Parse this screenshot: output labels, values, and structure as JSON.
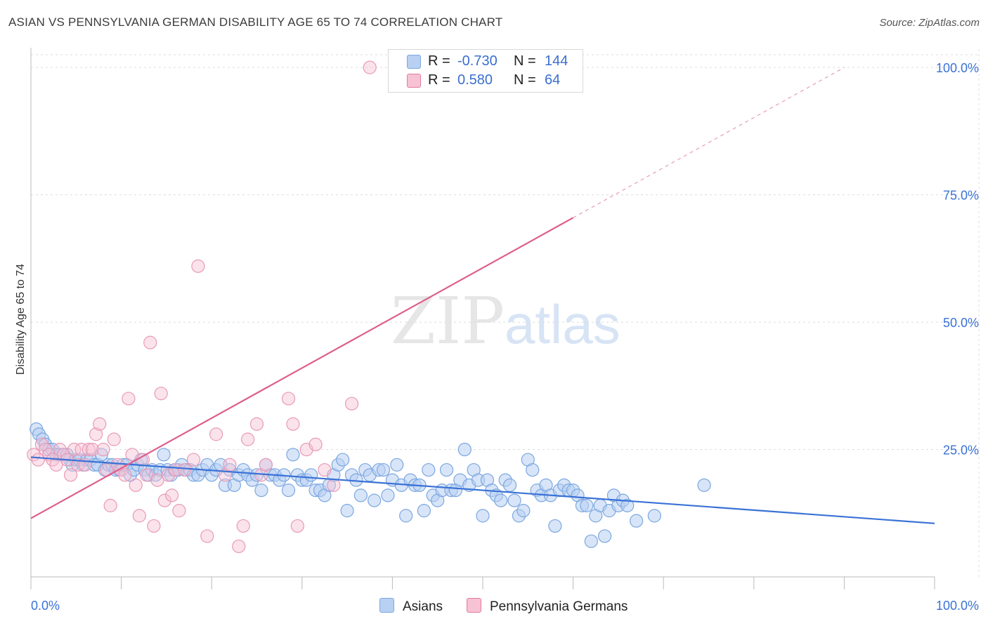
{
  "title": "ASIAN VS PENNSYLVANIA GERMAN DISABILITY AGE 65 TO 74 CORRELATION CHART",
  "source": "Source: ZipAtlas.com",
  "watermark": {
    "zip": "ZIP",
    "atlas": "atlas"
  },
  "legend": {
    "r_label": "R =",
    "n_label": "N =",
    "series": [
      {
        "name": "Asians",
        "r": "-0.730",
        "n": "144",
        "color": "#7ba7e0",
        "fill": "#b8d0f2"
      },
      {
        "name": "Pennsylvania Germans",
        "r": "0.580",
        "n": "64",
        "color": "#e27ba0",
        "fill": "#f7c2d4"
      }
    ]
  },
  "chart_data": {
    "type": "scatter",
    "title": "ASIAN VS PENNSYLVANIA GERMAN DISABILITY AGE 65 TO 74 CORRELATION CHART",
    "xlabel": "",
    "ylabel": "Disability Age 65 to 74",
    "xlim": [
      0,
      100
    ],
    "ylim": [
      0,
      102.5
    ],
    "x_tick_labels": [
      "0.0%",
      "100.0%"
    ],
    "y_tick_labels": [
      "25.0%",
      "50.0%",
      "75.0%",
      "100.0%"
    ],
    "y_ticks": [
      25,
      50,
      75,
      100
    ],
    "grid": true,
    "legend_position": "top-center",
    "series": [
      {
        "name": "Asians",
        "color": "#3a72d6",
        "trend": {
          "x": [
            0,
            100
          ],
          "y": [
            23.5,
            10.5
          ],
          "dashed_extension": false
        },
        "points": [
          [
            0.6,
            29
          ],
          [
            0.9,
            28
          ],
          [
            1.3,
            27
          ],
          [
            1.6,
            26
          ],
          [
            2.0,
            25
          ],
          [
            2.4,
            25
          ],
          [
            2.8,
            24
          ],
          [
            3.2,
            24
          ],
          [
            3.6,
            24
          ],
          [
            4.0,
            24
          ],
          [
            4.3,
            23
          ],
          [
            4.6,
            22
          ],
          [
            5.0,
            23
          ],
          [
            5.4,
            23
          ],
          [
            5.8,
            22
          ],
          [
            6.2,
            23
          ],
          [
            6.6,
            23
          ],
          [
            7.0,
            22
          ],
          [
            7.4,
            22
          ],
          [
            7.8,
            24
          ],
          [
            8.2,
            21
          ],
          [
            8.6,
            22
          ],
          [
            9.0,
            22
          ],
          [
            9.4,
            21
          ],
          [
            9.8,
            21
          ],
          [
            10.2,
            22
          ],
          [
            10.6,
            22
          ],
          [
            11.0,
            20
          ],
          [
            11.4,
            21
          ],
          [
            11.8,
            22
          ],
          [
            12.2,
            23
          ],
          [
            12.6,
            21
          ],
          [
            13.0,
            20
          ],
          [
            13.4,
            21
          ],
          [
            13.8,
            20
          ],
          [
            14.3,
            21
          ],
          [
            14.7,
            24
          ],
          [
            15.1,
            21
          ],
          [
            15.5,
            20
          ],
          [
            15.9,
            21
          ],
          [
            16.3,
            21
          ],
          [
            16.7,
            22
          ],
          [
            17.2,
            21
          ],
          [
            17.6,
            21
          ],
          [
            18.0,
            20
          ],
          [
            18.5,
            20
          ],
          [
            19.0,
            21
          ],
          [
            19.5,
            22
          ],
          [
            20.0,
            20
          ],
          [
            20.5,
            21
          ],
          [
            21.0,
            22
          ],
          [
            21.5,
            18
          ],
          [
            22.0,
            21
          ],
          [
            22.5,
            18
          ],
          [
            23.0,
            20
          ],
          [
            23.5,
            21
          ],
          [
            24.0,
            20
          ],
          [
            24.5,
            19
          ],
          [
            25.0,
            20
          ],
          [
            25.5,
            17
          ],
          [
            26.0,
            22
          ],
          [
            26.5,
            20
          ],
          [
            27.0,
            20
          ],
          [
            27.5,
            19
          ],
          [
            28.0,
            20
          ],
          [
            28.5,
            17
          ],
          [
            29.0,
            24
          ],
          [
            29.5,
            20
          ],
          [
            30.0,
            19
          ],
          [
            30.5,
            19
          ],
          [
            31.0,
            20
          ],
          [
            31.5,
            17
          ],
          [
            32.0,
            17
          ],
          [
            32.5,
            16
          ],
          [
            33.0,
            18
          ],
          [
            33.5,
            20
          ],
          [
            34.0,
            22
          ],
          [
            34.5,
            23
          ],
          [
            35.0,
            13
          ],
          [
            35.5,
            20
          ],
          [
            36.0,
            19
          ],
          [
            36.5,
            16
          ],
          [
            37.0,
            21
          ],
          [
            37.5,
            20
          ],
          [
            38.0,
            15
          ],
          [
            38.5,
            21
          ],
          [
            39.0,
            21
          ],
          [
            39.5,
            16
          ],
          [
            40.0,
            19
          ],
          [
            40.5,
            22
          ],
          [
            41.0,
            18
          ],
          [
            41.5,
            12
          ],
          [
            42.0,
            19
          ],
          [
            42.5,
            18
          ],
          [
            43.0,
            18
          ],
          [
            43.5,
            13
          ],
          [
            44.0,
            21
          ],
          [
            44.5,
            16
          ],
          [
            45.0,
            15
          ],
          [
            45.5,
            17
          ],
          [
            46.0,
            21
          ],
          [
            46.5,
            17
          ],
          [
            47.0,
            17
          ],
          [
            47.5,
            19
          ],
          [
            48.0,
            25
          ],
          [
            48.5,
            18
          ],
          [
            49.0,
            21
          ],
          [
            49.5,
            19
          ],
          [
            50.0,
            12
          ],
          [
            50.5,
            19
          ],
          [
            51.0,
            17
          ],
          [
            51.5,
            16
          ],
          [
            52.0,
            15
          ],
          [
            52.5,
            19
          ],
          [
            53.0,
            18
          ],
          [
            53.5,
            15
          ],
          [
            54.0,
            12
          ],
          [
            54.5,
            13
          ],
          [
            55.0,
            23
          ],
          [
            55.5,
            21
          ],
          [
            56.0,
            17
          ],
          [
            56.5,
            16
          ],
          [
            57.0,
            18
          ],
          [
            57.5,
            16
          ],
          [
            58.0,
            10
          ],
          [
            58.5,
            17
          ],
          [
            59.0,
            18
          ],
          [
            59.5,
            17
          ],
          [
            60.0,
            17
          ],
          [
            60.5,
            16
          ],
          [
            61.0,
            14
          ],
          [
            61.5,
            14
          ],
          [
            62.0,
            7
          ],
          [
            62.5,
            12
          ],
          [
            63.0,
            14
          ],
          [
            63.5,
            8
          ],
          [
            64.0,
            13
          ],
          [
            64.5,
            16
          ],
          [
            65.0,
            14
          ],
          [
            65.5,
            15
          ],
          [
            66.0,
            14
          ],
          [
            67.0,
            11
          ],
          [
            69.0,
            12
          ],
          [
            74.5,
            18
          ]
        ]
      },
      {
        "name": "Pennsylvania Germans",
        "color": "#dd5f8c",
        "trend": {
          "x": [
            0,
            60
          ],
          "y": [
            11.5,
            70.5
          ],
          "dashed_extension": {
            "x": [
              60,
              90
            ],
            "y": [
              70.5,
              100
            ]
          }
        },
        "points": [
          [
            0.3,
            24
          ],
          [
            0.8,
            23
          ],
          [
            1.2,
            26
          ],
          [
            1.6,
            25
          ],
          [
            2.0,
            24
          ],
          [
            2.4,
            23
          ],
          [
            2.8,
            22
          ],
          [
            3.2,
            25
          ],
          [
            3.6,
            24
          ],
          [
            4.0,
            23
          ],
          [
            4.4,
            20
          ],
          [
            4.8,
            25
          ],
          [
            5.2,
            22
          ],
          [
            5.6,
            25
          ],
          [
            6.0,
            22
          ],
          [
            6.4,
            25
          ],
          [
            6.8,
            25
          ],
          [
            7.2,
            28
          ],
          [
            7.6,
            30
          ],
          [
            8.0,
            25
          ],
          [
            8.4,
            21
          ],
          [
            8.8,
            14
          ],
          [
            9.2,
            27
          ],
          [
            9.6,
            22
          ],
          [
            10.0,
            21
          ],
          [
            10.4,
            20
          ],
          [
            10.8,
            35
          ],
          [
            11.2,
            24
          ],
          [
            11.6,
            18
          ],
          [
            12.0,
            12
          ],
          [
            12.4,
            23
          ],
          [
            12.8,
            20
          ],
          [
            13.2,
            46
          ],
          [
            13.6,
            10
          ],
          [
            14.0,
            19
          ],
          [
            14.4,
            36
          ],
          [
            14.8,
            15
          ],
          [
            15.2,
            20
          ],
          [
            15.6,
            16
          ],
          [
            16.0,
            21
          ],
          [
            16.4,
            13
          ],
          [
            17.0,
            21
          ],
          [
            18.0,
            23
          ],
          [
            18.5,
            61
          ],
          [
            19.5,
            8
          ],
          [
            20.5,
            28
          ],
          [
            21.5,
            20
          ],
          [
            22.0,
            22
          ],
          [
            23.0,
            6
          ],
          [
            23.5,
            10
          ],
          [
            24.0,
            27
          ],
          [
            25.0,
            30
          ],
          [
            25.5,
            20
          ],
          [
            26.0,
            22
          ],
          [
            28.5,
            35
          ],
          [
            29.0,
            30
          ],
          [
            29.5,
            10
          ],
          [
            30.5,
            25
          ],
          [
            31.5,
            26
          ],
          [
            32.5,
            21
          ],
          [
            33.5,
            18
          ],
          [
            35.5,
            34
          ],
          [
            37.5,
            100
          ],
          [
            40.5,
            100
          ]
        ]
      }
    ]
  }
}
